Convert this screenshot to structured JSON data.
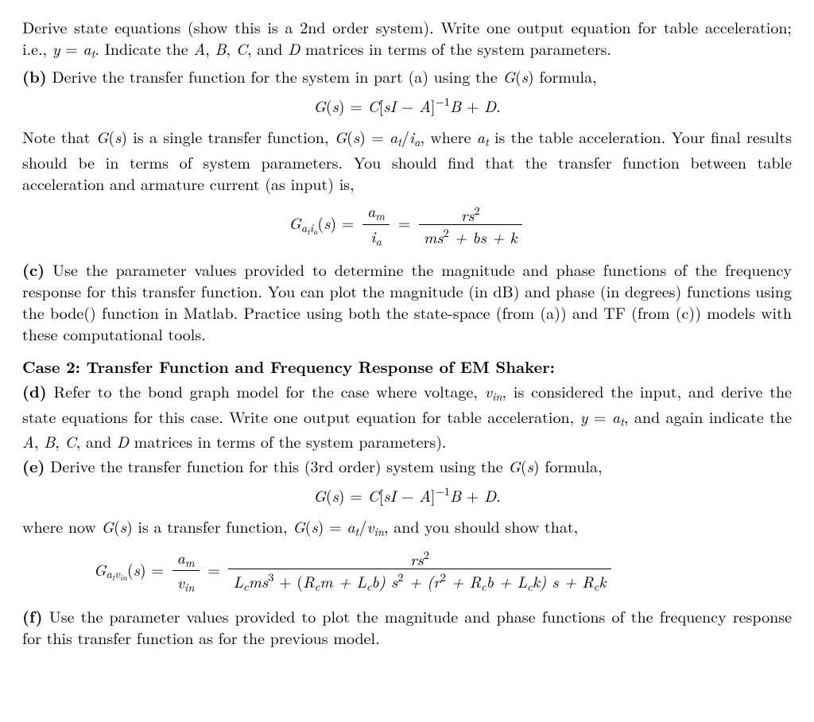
{
  "p1": {
    "t1": "Derive state equations (show this is a 2nd order system). Write one output equation for table acceleration; i.e., ",
    "eq1_y": "y",
    "eq1_eq": " = ",
    "eq1_a": "a",
    "eq1_sub": "t",
    "t2": ". Indicate the ",
    "A": "A",
    "t3": ", ",
    "B": "B",
    "t4": ", ",
    "C": "C",
    "t5": ", and ",
    "D": "D",
    "t6": " matrices in terms of the system parameters."
  },
  "pb": {
    "lbl": "(b)",
    "t1": " Derive the transfer function for the system in part (a) using the ",
    "G": "G",
    "s": "s",
    "t2": " formula,"
  },
  "eqGs": {
    "G": "G",
    "s": "s",
    "eq": " = ",
    "C": "C",
    "lb": "[",
    "sI": "sI",
    "minus": " − ",
    "A": "A",
    "rb": "]",
    "exp": "−1",
    "B": "B",
    "plus": " + ",
    "D": "D",
    "dot": "."
  },
  "p2": {
    "t1": "Note that ",
    "G": "G",
    "s": "s",
    "t2": " is a single transfer function, ",
    "eq": " = ",
    "a": "a",
    "asub": "t",
    "slash": "/",
    "i": "i",
    "isub": "a",
    "t3": ", where ",
    "t4": " is the table acceleration. Your final results should be in terms of system parameters. You should find that the transfer function between table acceleration and armature current (as input) is,"
  },
  "eqGatia": {
    "G": "G",
    "subG1": "a",
    "subG2": "t",
    "subG3": "i",
    "subG4": "a",
    "s": "s",
    "eq": " = ",
    "num1_a": "a",
    "num1_sub": "m",
    "den1_i": "i",
    "den1_sub": "a",
    "eq2": " = ",
    "num2_pre": "rs",
    "num2_sup": "2",
    "den2_a": "ms",
    "den2_sup": "2",
    "den2_mid": " + bs + k"
  },
  "pc": {
    "lbl": "(c)",
    "t1": " Use the parameter values provided to determine the magnitude and phase functions of the frequency response for this transfer function. You can plot the magnitude (in dB) and phase (in degrees) functions using the bode() function in Matlab. Practice using both the state-space (from (a)) and TF (from (c)) models with these computational tools."
  },
  "case2": {
    "hdr": "Case 2: Transfer Function and Frequency Response of EM Shaker:"
  },
  "pd": {
    "lbl": "(d)",
    "t1": " Refer to the bond graph model for the case where voltage, ",
    "v": "v",
    "vsub": "in",
    "t2": ", is considered the input, and derive the state equations for this case. Write one output equation for table acceleration, ",
    "y": "y",
    "eq": " = ",
    "a": "a",
    "asub": "t",
    "t3": ", and again indicate the ",
    "A": "A",
    "c1": ", ",
    "B": "B",
    "c2": ", ",
    "C": "C",
    "c3": ", and ",
    "D": "D",
    "t4": " matrices in terms of the system parameters)."
  },
  "pe": {
    "lbl": "(e)",
    "t1": " Derive the transfer function for this (3rd order) system using the ",
    "G": "G",
    "s": "s",
    "t2": " formula,"
  },
  "p3": {
    "t1": "where now ",
    "G": "G",
    "s": "s",
    "t2": " is a transfer function, ",
    "eq": " = ",
    "a": "a",
    "asub": "t",
    "slash": "/",
    "v": "v",
    "vsub": "in",
    "t3": ", and you should show that,"
  },
  "eqGatvin": {
    "G": "G",
    "subG1": "a",
    "subG2": "t",
    "subG3": "v",
    "subG4": "in",
    "s": "s",
    "eq": " = ",
    "num1_a": "a",
    "num1_sub": "m",
    "den1_v": "v",
    "den1_sub": "in",
    "eq2": " = ",
    "num2_pre": "rs",
    "num2_sup": "2",
    "den2_a": "L",
    "den2_asub": "c",
    "den2_b": "ms",
    "den2_bsup": "3",
    "den2_c": " + (",
    "den2_d": "R",
    "den2_dsub": "c",
    "den2_e": "m + L",
    "den2_esub": "c",
    "den2_f": "b) s",
    "den2_fsup": "2",
    "den2_g": " + (r",
    "den2_gsup": "2",
    "den2_h": " + R",
    "den2_hsub": "c",
    "den2_i": "b + L",
    "den2_isub": "c",
    "den2_j": "k) s + R",
    "den2_jsub": "c",
    "den2_k": "k"
  },
  "pf": {
    "lbl": "(f)",
    "t1": " Use the parameter values provided to plot the magnitude and phase functions of the frequency response for this transfer function as for the previous model."
  }
}
